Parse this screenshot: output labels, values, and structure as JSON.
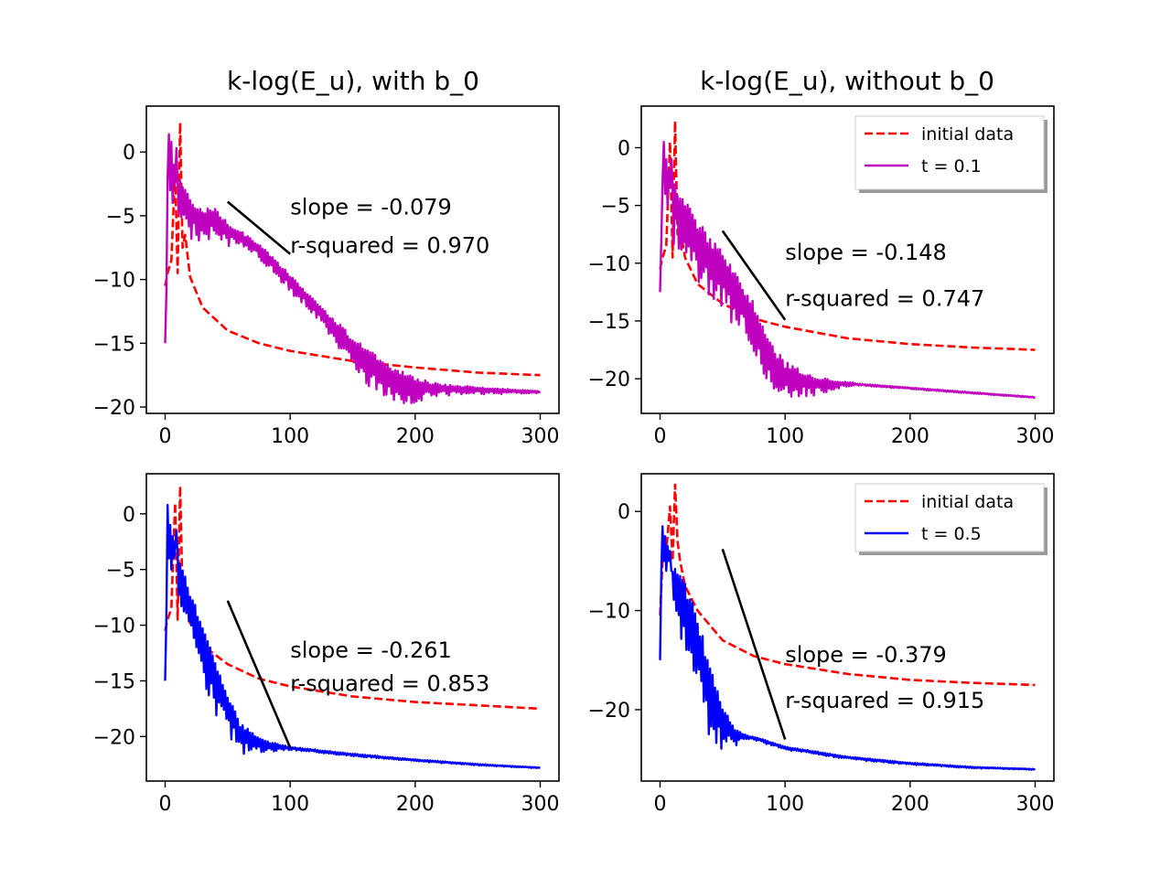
{
  "chart_data": [
    {
      "type": "line",
      "title": "k-log(E_u), with b_0",
      "xlabel": "",
      "ylabel": "",
      "xlim": [
        -15,
        315
      ],
      "ylim": [
        -20.5,
        3.6
      ],
      "xticks": [
        0,
        100,
        200,
        300
      ],
      "yticks": [
        0,
        -5,
        -10,
        -15,
        -20
      ],
      "legend": null,
      "series": [
        {
          "role": "initial",
          "color": "#ff0000",
          "style": "dashed",
          "peaks": [
            [
              8,
              -1.5
            ],
            [
              12,
              2.3
            ]
          ],
          "base": -9.5,
          "tail": [
            [
              16,
              -6.5
            ],
            [
              20,
              -9.8
            ],
            [
              30,
              -12.2
            ],
            [
              50,
              -14.0
            ],
            [
              75,
              -15.0
            ],
            [
              100,
              -15.6
            ],
            [
              150,
              -16.4
            ],
            [
              200,
              -16.9
            ],
            [
              250,
              -17.3
            ],
            [
              300,
              -17.5
            ]
          ]
        },
        {
          "role": "solution",
          "color": "#bf00bf",
          "style": "solid",
          "spikes": [
            [
              0,
              -15
            ],
            [
              1,
              -11
            ],
            [
              2,
              -2
            ],
            [
              3,
              1.4
            ],
            [
              4,
              -3
            ],
            [
              5,
              0.8
            ],
            [
              6,
              -4
            ],
            [
              7,
              -1
            ],
            [
              8,
              -2.5
            ],
            [
              9,
              0.3
            ]
          ],
          "trend": [
            [
              10,
              -3.0
            ],
            [
              20,
              -4.5
            ],
            [
              30,
              -5.2
            ],
            [
              40,
              -5.0
            ],
            [
              50,
              -6.0
            ],
            [
              75,
              -7.5
            ],
            [
              100,
              -10.0
            ],
            [
              125,
              -12.5
            ],
            [
              150,
              -15.2
            ],
            [
              175,
              -17.2
            ],
            [
              200,
              -18.3
            ],
            [
              225,
              -18.5
            ],
            [
              250,
              -18.6
            ],
            [
              300,
              -18.8
            ]
          ],
          "noise": [
            [
              10,
              2.0
            ],
            [
              40,
              1.2
            ],
            [
              70,
              0.6
            ],
            [
              130,
              0.8
            ],
            [
              160,
              1.6
            ],
            [
              190,
              1.4
            ],
            [
              220,
              0.5
            ],
            [
              260,
              0.25
            ],
            [
              300,
              0.1
            ]
          ]
        },
        {
          "role": "fit",
          "color": "#000000",
          "style": "solid",
          "x": [
            50,
            100
          ],
          "y": [
            -3.9,
            -8.0
          ]
        }
      ],
      "annotations": [
        {
          "text": "slope = -0.079",
          "x": 100,
          "y": -4.9
        },
        {
          "text": "r-squared = 0.970",
          "x": 100,
          "y": -7.9
        }
      ]
    },
    {
      "type": "line",
      "title": "k-log(E_u), without b_0",
      "xlabel": "",
      "ylabel": "",
      "xlim": [
        -15,
        315
      ],
      "ylim": [
        -23,
        3.6
      ],
      "xticks": [
        0,
        100,
        200,
        300
      ],
      "yticks": [
        0,
        -5,
        -10,
        -15,
        -20
      ],
      "legend": {
        "placement": "top-right",
        "entries": [
          {
            "label": "initial data",
            "color": "#ff0000",
            "style": "dashed"
          },
          {
            "label": "t = 0.1",
            "color": "#bf00bf",
            "style": "solid"
          }
        ]
      },
      "series": [
        {
          "role": "initial",
          "color": "#ff0000",
          "style": "dashed",
          "peaks": [
            [
              8,
              0.5
            ],
            [
              12,
              2.3
            ]
          ],
          "base": -9.5,
          "tail": [
            [
              16,
              -7.0
            ],
            [
              20,
              -9.5
            ],
            [
              30,
              -11.8
            ],
            [
              50,
              -13.5
            ],
            [
              75,
              -14.8
            ],
            [
              100,
              -15.5
            ],
            [
              150,
              -16.5
            ],
            [
              200,
              -17.0
            ],
            [
              250,
              -17.3
            ],
            [
              300,
              -17.5
            ]
          ]
        },
        {
          "role": "solution",
          "color": "#bf00bf",
          "style": "solid",
          "spikes": [
            [
              0,
              -12.5
            ],
            [
              1,
              -8
            ],
            [
              2,
              -3
            ],
            [
              3,
              0.5
            ],
            [
              4,
              -4
            ],
            [
              5,
              -1
            ],
            [
              6,
              -5
            ],
            [
              7,
              -2
            ],
            [
              8,
              -3.5
            ],
            [
              9,
              -1
            ]
          ],
          "trend": [
            [
              10,
              -4.0
            ],
            [
              25,
              -7.0
            ],
            [
              50,
              -10.5
            ],
            [
              75,
              -14.5
            ],
            [
              85,
              -17.5
            ],
            [
              100,
              -19.5
            ],
            [
              125,
              -20.3
            ],
            [
              150,
              -20.4
            ],
            [
              200,
              -20.8
            ],
            [
              250,
              -21.2
            ],
            [
              300,
              -21.6
            ]
          ],
          "noise": [
            [
              10,
              3.0
            ],
            [
              60,
              2.5
            ],
            [
              95,
              2.0
            ],
            [
              120,
              1.0
            ],
            [
              140,
              0.4
            ],
            [
              160,
              0.1
            ],
            [
              300,
              0.05
            ]
          ]
        },
        {
          "role": "fit",
          "color": "#000000",
          "style": "solid",
          "x": [
            50,
            100
          ],
          "y": [
            -7.2,
            -14.9
          ]
        }
      ],
      "annotations": [
        {
          "text": "slope = -0.148",
          "x": 100,
          "y": -9.7
        },
        {
          "text": "r-squared = 0.747",
          "x": 100,
          "y": -13.7
        }
      ]
    },
    {
      "type": "line",
      "title": "",
      "xlabel": "",
      "ylabel": "",
      "xlim": [
        -15,
        315
      ],
      "ylim": [
        -24,
        3.6
      ],
      "xticks": [
        0,
        100,
        200,
        300
      ],
      "yticks": [
        0,
        -5,
        -10,
        -15,
        -20
      ],
      "legend": null,
      "series": [
        {
          "role": "initial",
          "color": "#ff0000",
          "style": "dashed",
          "peaks": [
            [
              8,
              1.0
            ],
            [
              12,
              2.5
            ]
          ],
          "base": -9.5,
          "tail": [
            [
              16,
              -7.0
            ],
            [
              20,
              -9.8
            ],
            [
              30,
              -11.8
            ],
            [
              50,
              -13.5
            ],
            [
              75,
              -14.8
            ],
            [
              100,
              -15.5
            ],
            [
              150,
              -16.4
            ],
            [
              200,
              -16.9
            ],
            [
              250,
              -17.2
            ],
            [
              300,
              -17.5
            ]
          ]
        },
        {
          "role": "solution",
          "color": "#0000ff",
          "style": "solid",
          "spikes": [
            [
              0,
              -15
            ],
            [
              1,
              -9
            ],
            [
              2,
              0.8
            ],
            [
              3,
              -4
            ],
            [
              4,
              -1
            ],
            [
              5,
              -5
            ],
            [
              6,
              -2
            ],
            [
              7,
              -4
            ],
            [
              8,
              -3
            ],
            [
              9,
              -1.5
            ]
          ],
          "trend": [
            [
              10,
              -4.5
            ],
            [
              20,
              -8.0
            ],
            [
              30,
              -11.5
            ],
            [
              40,
              -14.5
            ],
            [
              50,
              -17.0
            ],
            [
              60,
              -19.5
            ],
            [
              80,
              -20.7
            ],
            [
              100,
              -21.0
            ],
            [
              150,
              -21.6
            ],
            [
              200,
              -22.1
            ],
            [
              250,
              -22.5
            ],
            [
              300,
              -22.8
            ]
          ],
          "noise": [
            [
              10,
              2.5
            ],
            [
              40,
              2.5
            ],
            [
              60,
              1.5
            ],
            [
              80,
              0.6
            ],
            [
              100,
              0.15
            ],
            [
              300,
              0.05
            ]
          ]
        },
        {
          "role": "fit",
          "color": "#000000",
          "style": "solid",
          "x": [
            50,
            100
          ],
          "y": [
            -7.8,
            -21.0
          ]
        }
      ],
      "annotations": [
        {
          "text": "slope = -0.261",
          "x": 100,
          "y": -12.9
        },
        {
          "text": "r-squared = 0.853",
          "x": 100,
          "y": -15.9
        }
      ]
    },
    {
      "type": "line",
      "title": "",
      "xlabel": "",
      "ylabel": "",
      "xlim": [
        -15,
        315
      ],
      "ylim": [
        -27.2,
        3.8
      ],
      "xticks": [
        0,
        100,
        200,
        300
      ],
      "yticks": [
        0,
        -10,
        -20
      ],
      "legend": {
        "placement": "top-right",
        "entries": [
          {
            "label": "initial data",
            "color": "#ff0000",
            "style": "dashed"
          },
          {
            "label": "t = 0.5",
            "color": "#0000ff",
            "style": "solid"
          }
        ]
      },
      "series": [
        {
          "role": "initial",
          "color": "#ff0000",
          "style": "dashed",
          "peaks": [
            [
              8,
              0.5
            ],
            [
              12,
              2.7
            ]
          ],
          "base": -5.0,
          "tail": [
            [
              16,
              -5.0
            ],
            [
              20,
              -7.5
            ],
            [
              30,
              -10.0
            ],
            [
              50,
              -13.0
            ],
            [
              75,
              -14.6
            ],
            [
              100,
              -15.4
            ],
            [
              150,
              -16.4
            ],
            [
              200,
              -17.0
            ],
            [
              250,
              -17.3
            ],
            [
              300,
              -17.5
            ]
          ]
        },
        {
          "role": "solution",
          "color": "#0000ff",
          "style": "solid",
          "spikes": [
            [
              0,
              -15
            ],
            [
              1,
              -6
            ],
            [
              2,
              -1.5
            ],
            [
              3,
              -5
            ],
            [
              4,
              -2.5
            ],
            [
              5,
              -6
            ],
            [
              6,
              -3.5
            ],
            [
              7,
              -5
            ],
            [
              8,
              -4
            ],
            [
              9,
              -6
            ]
          ],
          "trend": [
            [
              10,
              -7.0
            ],
            [
              20,
              -9.0
            ],
            [
              30,
              -13.0
            ],
            [
              40,
              -17.5
            ],
            [
              50,
              -21.0
            ],
            [
              60,
              -22.4
            ],
            [
              80,
              -23.0
            ],
            [
              100,
              -23.8
            ],
            [
              150,
              -24.8
            ],
            [
              200,
              -25.4
            ],
            [
              250,
              -25.8
            ],
            [
              300,
              -26.0
            ]
          ],
          "noise": [
            [
              10,
              3.0
            ],
            [
              35,
              4.5
            ],
            [
              50,
              2.5
            ],
            [
              60,
              1.0
            ],
            [
              70,
              0.2
            ],
            [
              300,
              0.05
            ]
          ]
        },
        {
          "role": "fit",
          "color": "#000000",
          "style": "solid",
          "x": [
            50,
            100
          ],
          "y": [
            -3.8,
            -23.0
          ]
        }
      ],
      "annotations": [
        {
          "text": "slope = -0.379",
          "x": 100,
          "y": -15.2
        },
        {
          "text": "r-squared = 0.915",
          "x": 100,
          "y": -19.8
        }
      ]
    }
  ]
}
